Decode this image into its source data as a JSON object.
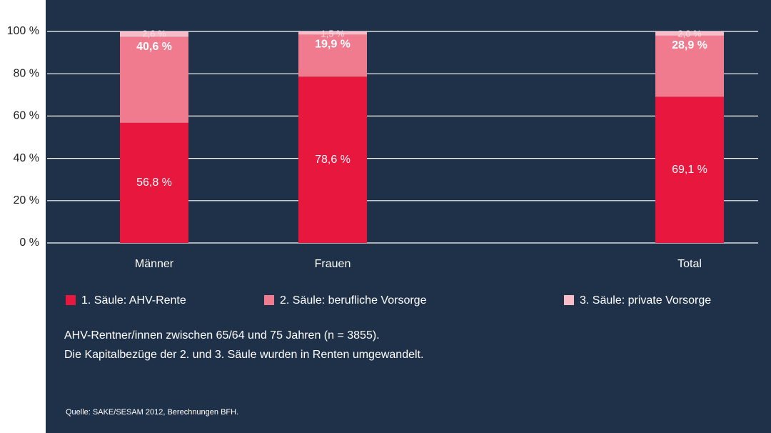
{
  "chart_data": {
    "type": "stacked_bar",
    "categories": [
      "Männer",
      "Frauen",
      null,
      "Total"
    ],
    "series": [
      {
        "name": "1. Säule: AHV-Rente",
        "color": "#e8173d",
        "values": [
          56.8,
          78.6,
          null,
          69.1
        ],
        "value_labels": [
          "56,8 %",
          "78,6 %",
          null,
          "69,1 %"
        ]
      },
      {
        "name": "2. Säule: berufliche Vorsorge",
        "color": "#f07a8e",
        "values": [
          40.6,
          19.9,
          null,
          28.9
        ],
        "value_labels": [
          "40,6 %",
          "19,9 %",
          null,
          "28,9 %"
        ]
      },
      {
        "name": "3. Säule: private Vorsorge",
        "color": "#f8bcc8",
        "values": [
          2.6,
          1.5,
          null,
          2.0
        ],
        "value_labels": [
          "2,6 %",
          "1,5 %",
          null,
          "2,0 %"
        ]
      }
    ],
    "ylim": [
      0,
      100
    ],
    "yticks": [
      {
        "value": 0,
        "label": "0 %"
      },
      {
        "value": 20,
        "label": "20 %"
      },
      {
        "value": 40,
        "label": "40 %"
      },
      {
        "value": 60,
        "label": "60 %"
      },
      {
        "value": 80,
        "label": "80 %"
      },
      {
        "value": 100,
        "label": "100 %"
      }
    ],
    "grid": true,
    "notes": [
      "AHV-Rentner/innen zwischen 65/64 und 75 Jahren (n = 3855).",
      "Die Kapitalbezüge der 2. und 3. Säule wurden in Renten umgewandelt."
    ],
    "source": "Quelle: SAKE/SESAM 2012, Berechnungen BFH."
  }
}
